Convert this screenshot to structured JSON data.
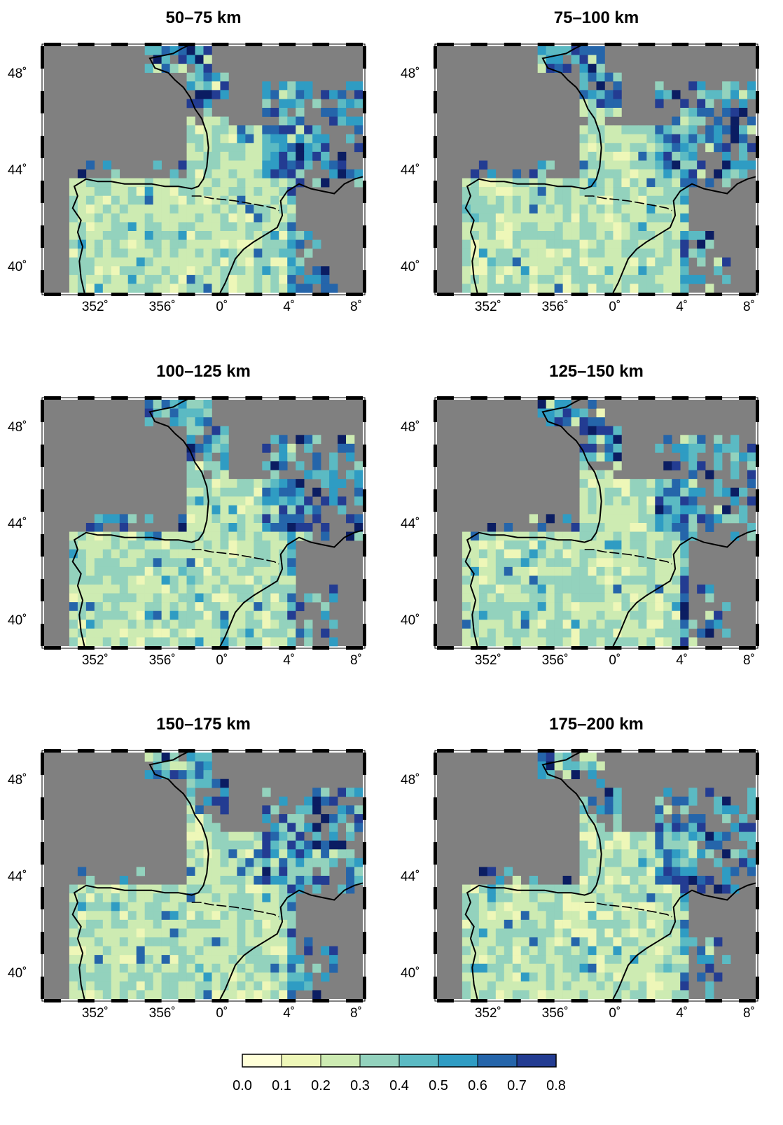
{
  "panels": [
    {
      "title": "50–75 km",
      "seed": 11
    },
    {
      "title": "75–100 km",
      "seed": 23
    },
    {
      "title": "100–125 km",
      "seed": 37
    },
    {
      "title": "125–150 km",
      "seed": 41
    },
    {
      "title": "150–175 km",
      "seed": 53
    },
    {
      "title": "175–200 km",
      "seed": 67
    }
  ],
  "axis": {
    "lon_ticks": [
      "352˚",
      "356˚",
      "0˚",
      "4˚",
      "8˚"
    ],
    "lat_ticks": [
      "48˚",
      "44˚",
      "40˚"
    ]
  },
  "colorbar": {
    "tick_labels": [
      "0.0",
      "0.1",
      "0.2",
      "0.3",
      "0.4",
      "0.5",
      "0.6",
      "0.7",
      "0.8"
    ],
    "colors": [
      "#ffffd8",
      "#eef7b8",
      "#cdebb2",
      "#93d2bd",
      "#5bbac3",
      "#2f9cc3",
      "#2565aa",
      "#233c92",
      "#0b1d62"
    ]
  },
  "colors": {
    "background_gray": "#808080",
    "coastline": "#000000"
  }
}
